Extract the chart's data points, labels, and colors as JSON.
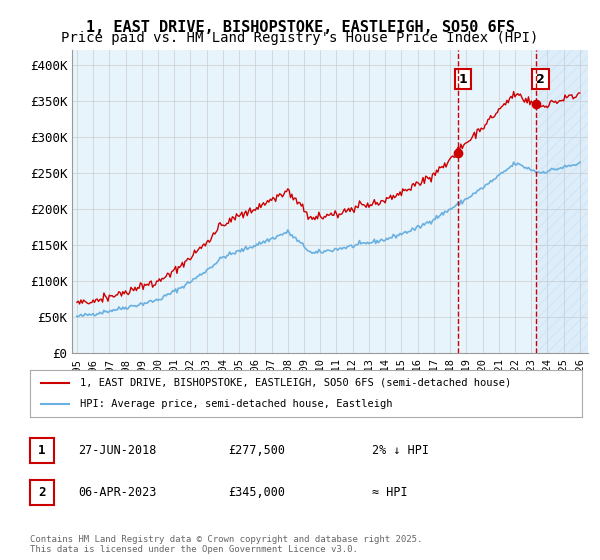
{
  "title": "1, EAST DRIVE, BISHOPSTOKE, EASTLEIGH, SO50 6FS",
  "subtitle": "Price paid vs. HM Land Registry's House Price Index (HPI)",
  "ylabel_ticks": [
    "£0",
    "£50K",
    "£100K",
    "£150K",
    "£200K",
    "£250K",
    "£300K",
    "£350K",
    "£400K"
  ],
  "ylim": [
    0,
    420000
  ],
  "xlim_start": 1995.0,
  "xlim_end": 2026.5,
  "hpi_color": "#6ab0e0",
  "price_color": "#cc0000",
  "marker1_date": 2018.49,
  "marker2_date": 2023.27,
  "marker1_price": 277500,
  "marker2_price": 345000,
  "marker1_label": "27-JUN-2018",
  "marker2_label": "06-APR-2023",
  "marker1_rel": "2% ↓ HPI",
  "marker2_rel": "≈ HPI",
  "legend_label1": "1, EAST DRIVE, BISHOPSTOKE, EASTLEIGH, SO50 6FS (semi-detached house)",
  "legend_label2": "HPI: Average price, semi-detached house, Eastleigh",
  "footnote": "Contains HM Land Registry data © Crown copyright and database right 2025.\nThis data is licensed under the Open Government Licence v3.0.",
  "bg_color": "#e8f4fc",
  "hatch_color": "#c8dff0",
  "grid_color": "#cccccc",
  "title_fontsize": 11,
  "subtitle_fontsize": 10,
  "tick_fontsize": 9
}
